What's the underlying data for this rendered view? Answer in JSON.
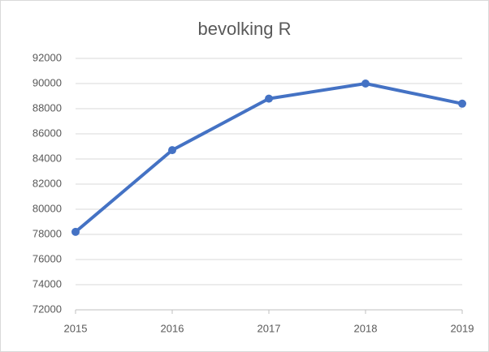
{
  "chart_data": {
    "type": "line",
    "title": "bevolking R",
    "categories": [
      "2015",
      "2016",
      "2017",
      "2018",
      "2019"
    ],
    "series": [
      {
        "name": "bevolking R",
        "color": "#4472c4",
        "values": [
          78200,
          84700,
          88800,
          90000,
          88400
        ]
      }
    ],
    "ylim": [
      72000,
      92000
    ],
    "yticks": [
      72000,
      74000,
      76000,
      78000,
      80000,
      82000,
      84000,
      86000,
      88000,
      90000,
      92000
    ],
    "grid": true
  }
}
